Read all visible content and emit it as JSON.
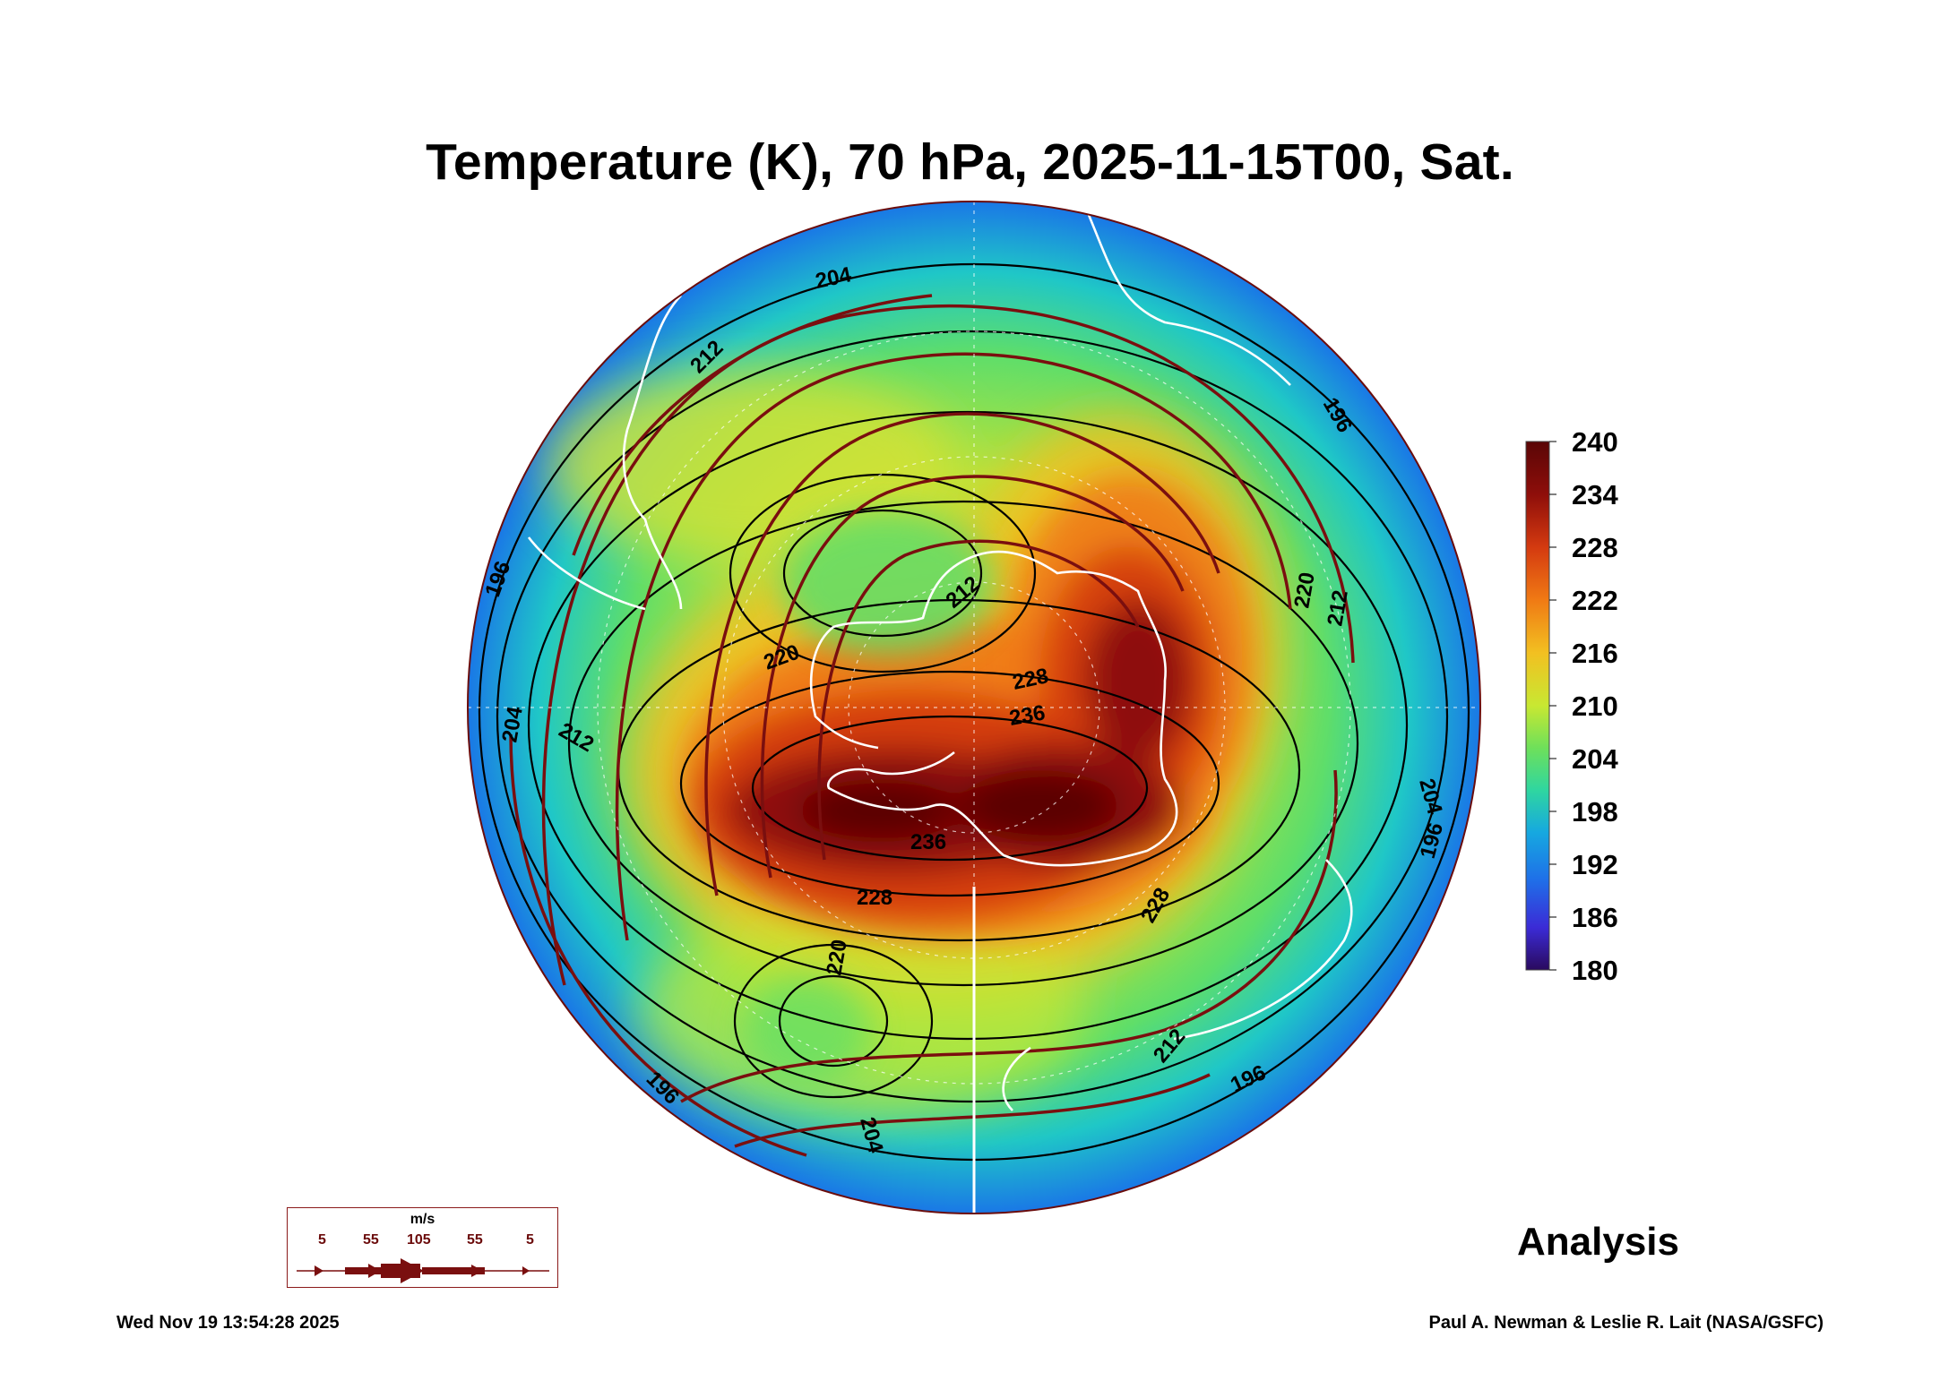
{
  "title": "Temperature (K), 70 hPa, 2025-11-15T00, Sat.",
  "colorbar": {
    "ticks": [
      "240",
      "234",
      "228",
      "222",
      "216",
      "210",
      "204",
      "198",
      "192",
      "186",
      "180"
    ],
    "colors": [
      "#2a0a5e",
      "#3b2bd6",
      "#1f6fe8",
      "#16a8e0",
      "#2fd6a0",
      "#6ee05a",
      "#c8e832",
      "#f2c021",
      "#f07a14",
      "#d43a10",
      "#8e0e0a",
      "#5a0606"
    ]
  },
  "contour_labels": [
    {
      "text": "204"
    },
    {
      "text": "212"
    },
    {
      "text": "212"
    },
    {
      "text": "220"
    },
    {
      "text": "212"
    },
    {
      "text": "204"
    },
    {
      "text": "212"
    },
    {
      "text": "220"
    },
    {
      "text": "228"
    },
    {
      "text": "236"
    },
    {
      "text": "236"
    },
    {
      "text": "228"
    },
    {
      "text": "228"
    },
    {
      "text": "220"
    },
    {
      "text": "204"
    },
    {
      "text": "196"
    },
    {
      "text": "204"
    },
    {
      "text": "196"
    },
    {
      "text": "196"
    },
    {
      "text": "212"
    },
    {
      "text": "196"
    },
    {
      "text": "196"
    }
  ],
  "wind_key": {
    "unit": "m/s",
    "speeds": [
      "5",
      "55",
      "105",
      "55",
      "5"
    ]
  },
  "analysis_label": "Analysis",
  "timestamp": "Wed Nov 19 13:54:28 2025",
  "credit": "Paul A. Newman & Leslie R. Lait (NASA/GSFC)"
}
